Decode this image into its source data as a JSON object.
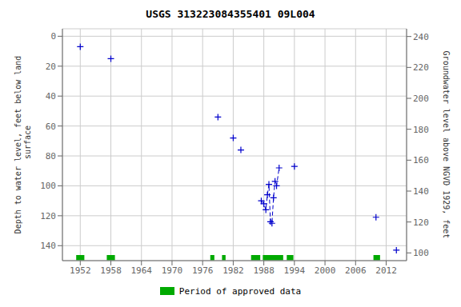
{
  "chart_data": {
    "type": "scatter",
    "title": "USGS 313223084355401 09L004",
    "ylabel": "Depth to water level, feet below land\n surface",
    "y2label": "Groundwater level above NGVD 1929, feet",
    "xlim": [
      1948.5,
      2016.0
    ],
    "ylim": [
      150,
      -5
    ],
    "y2lim": [
      95,
      245
    ],
    "xticks": [
      1952,
      1958,
      1964,
      1970,
      1976,
      1982,
      1988,
      1994,
      2000,
      2006,
      2012
    ],
    "yticks": [
      0,
      20,
      40,
      60,
      80,
      100,
      120,
      140
    ],
    "y2ticks": [
      240,
      220,
      200,
      180,
      160,
      140,
      120,
      100
    ],
    "grid": true,
    "legend": "bottom",
    "series": [
      {
        "type": "scatter",
        "color": "#0000cc",
        "marker": "plus",
        "x": [
          1952,
          1958,
          1979,
          1982,
          1983.5,
          1987.5,
          1988.0,
          1988.4,
          1988.7,
          1989.0,
          1989.3,
          1989.6,
          1989.9,
          1990.2,
          1990.5,
          1991.0,
          1994,
          2010,
          2014
        ],
        "values": [
          7,
          15,
          54,
          68,
          76,
          110,
          112,
          116,
          106,
          99,
          124,
          125,
          108,
          97,
          100,
          88,
          87,
          121,
          143
        ]
      },
      {
        "type": "line",
        "color": "#0000cc",
        "line_style": "dashed",
        "x": [
          1987.5,
          1988.0,
          1988.4,
          1988.7,
          1989.0,
          1989.3,
          1989.6,
          1989.9,
          1990.2,
          1990.5,
          1991.0
        ],
        "values": [
          110,
          112,
          116,
          106,
          99,
          124,
          125,
          108,
          97,
          100,
          88
        ]
      },
      {
        "type": "bar",
        "name": "Period of approved data",
        "color": "#00aa00",
        "orientation": "horizontal",
        "ranges": [
          [
            1951.2,
            1952.8
          ],
          [
            1957.2,
            1958.8
          ],
          [
            1977.5,
            1978.3
          ],
          [
            1979.8,
            1980.5
          ],
          [
            1985.5,
            1987.3
          ],
          [
            1987.8,
            1991.8
          ],
          [
            1992.5,
            1993.8
          ],
          [
            2009.5,
            2010.8
          ]
        ],
        "y": 148,
        "height": 3.5
      }
    ]
  }
}
